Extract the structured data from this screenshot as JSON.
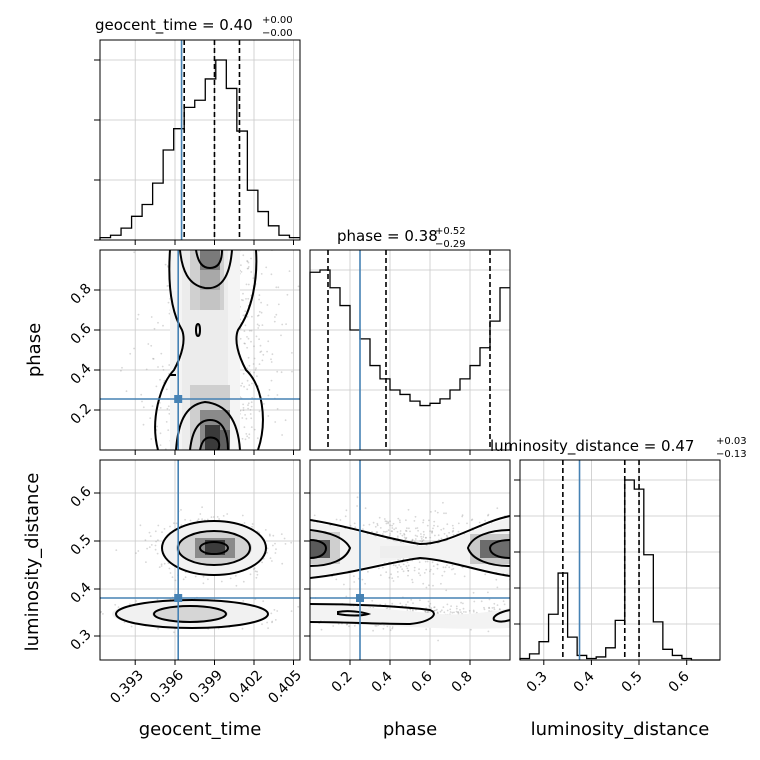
{
  "chart_data": {
    "type": "corner",
    "parameters": [
      "geocent_time",
      "phase",
      "luminosity_distance"
    ],
    "truths": {
      "geocent_time": 0.3963,
      "phase": 0.25,
      "luminosity_distance": 0.375
    },
    "titles": [
      {
        "param": "geocent_time",
        "text": "geocent_time = 0.40",
        "plus": "+0.00",
        "minus": "−0.00"
      },
      {
        "param": "phase",
        "text": "phase = 0.38",
        "plus": "+0.52",
        "minus": "−0.29"
      },
      {
        "param": "luminosity_distance",
        "text": "luminosity_distance = 0.47",
        "plus": "+0.03",
        "minus": "−0.13"
      }
    ],
    "axis_labels": {
      "geocent_time": "geocent_time",
      "phase": "phase",
      "luminosity_distance": "luminosity_distance"
    },
    "ranges": {
      "geocent_time": [
        0.3901,
        0.4053
      ],
      "phase": [
        0.0,
        1.0
      ],
      "luminosity_distance": [
        0.25,
        0.67
      ]
    },
    "tick_labels": {
      "geocent_time": [
        "0.393",
        "0.396",
        "0.399",
        "0.402",
        "0.405"
      ],
      "phase": [
        "0.2",
        "0.4",
        "0.6",
        "0.8"
      ],
      "luminosity_distance": [
        "0.3",
        "0.4",
        "0.5",
        "0.6"
      ]
    },
    "ticks": {
      "geocent_time": [
        0.393,
        0.396,
        0.399,
        0.402,
        0.405
      ],
      "phase": [
        0.2,
        0.4,
        0.6,
        0.8
      ],
      "luminosity_distance": [
        0.3,
        0.4,
        0.5,
        0.6
      ]
    },
    "quantiles": {
      "geocent_time": [
        0.3965,
        0.3988,
        0.4007
      ],
      "phase": [
        0.09,
        0.38,
        0.9
      ],
      "luminosity_distance": [
        0.34,
        0.47,
        0.5
      ]
    },
    "histograms": {
      "geocent_time": {
        "edges": [
          0.3901,
          0.3909,
          0.3917,
          0.3925,
          0.3933,
          0.3941,
          0.3949,
          0.3957,
          0.3965,
          0.3973,
          0.3981,
          0.3989,
          0.3997,
          0.4005,
          0.4013,
          0.4021,
          0.4029,
          0.4037,
          0.4045,
          0.4053
        ],
        "counts": [
          1,
          2,
          5,
          10,
          15,
          24,
          38,
          47,
          56,
          59,
          68,
          76,
          64,
          46,
          21,
          12,
          6,
          2,
          1
        ]
      },
      "phase": {
        "edges": [
          0.0,
          0.05,
          0.1,
          0.15,
          0.2,
          0.25,
          0.3,
          0.35,
          0.4,
          0.45,
          0.5,
          0.55,
          0.6,
          0.65,
          0.7,
          0.75,
          0.8,
          0.85,
          0.9,
          0.95,
          1.0
        ],
        "counts": [
          80,
          81,
          73,
          65,
          54,
          50,
          38,
          32,
          27,
          25,
          22,
          20,
          21,
          23,
          27,
          32,
          38,
          46,
          58,
          73
        ]
      },
      "luminosity_distance": {
        "edges": [
          0.25,
          0.27,
          0.29,
          0.31,
          0.33,
          0.35,
          0.37,
          0.39,
          0.41,
          0.43,
          0.45,
          0.47,
          0.49,
          0.51,
          0.53,
          0.55,
          0.57,
          0.59,
          0.61,
          0.63,
          0.65,
          0.67
        ],
        "counts": [
          1,
          4,
          12,
          30,
          57,
          15,
          3,
          1,
          2,
          8,
          26,
          118,
          112,
          69,
          25,
          7,
          3,
          1,
          0,
          0,
          0
        ]
      }
    },
    "grid": true,
    "style": {
      "truth_color": "#4682b4",
      "hist_color": "#000000",
      "quantile_color": "#000000"
    }
  }
}
